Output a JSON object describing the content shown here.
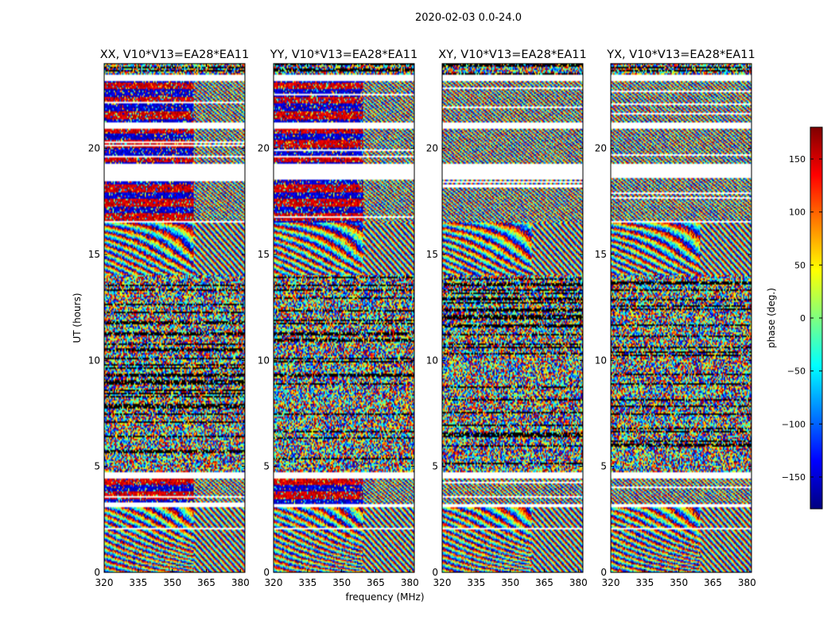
{
  "suptitle": "2020-02-03 0.0-24.0",
  "chart_data": {
    "type": "heatmap",
    "x": {
      "label": "frequency (MHz)",
      "range": [
        320,
        382
      ],
      "ticks": [
        320,
        335,
        350,
        365,
        380
      ],
      "tick_labels": [
        "320",
        "335",
        "350",
        "365",
        "380"
      ]
    },
    "y": {
      "label": "UT (hours)",
      "range": [
        0,
        24
      ],
      "ticks": [
        0,
        5,
        10,
        15,
        20
      ],
      "tick_labels": [
        "0",
        "5",
        "10",
        "15",
        "20"
      ]
    },
    "colorbar": {
      "label": "phase (deg.)",
      "range": [
        -180,
        180
      ],
      "ticks": [
        -150,
        -100,
        -50,
        0,
        50,
        100,
        150
      ],
      "tick_labels": [
        "−150",
        "−100",
        "−50",
        "0",
        "50",
        "100",
        "150"
      ],
      "colormap": "jet",
      "colors": [
        "#000080",
        "#0000ff",
        "#00ffff",
        "#ffff00",
        "#ff0000",
        "#800000"
      ]
    },
    "panels": [
      {
        "title": "XX, V10*V13=EA28*EA11",
        "pol": "XX"
      },
      {
        "title": "YY, V10*V13=EA28*EA11",
        "pol": "YY"
      },
      {
        "title": "XY, V10*V13=EA28*EA11",
        "pol": "XY"
      },
      {
        "title": "YX, V10*V13=EA28*EA11",
        "pol": "YX"
      }
    ],
    "flagged_ut_ranges": [
      [
        2.05,
        2.1
      ],
      [
        3.05,
        3.2
      ],
      [
        4.45,
        4.75
      ],
      [
        18.6,
        19.25
      ],
      [
        20.95,
        21.2
      ],
      [
        23.2,
        23.5
      ]
    ],
    "regions": [
      {
        "ut": [
          0,
          3.05
        ],
        "kind": "fringes"
      },
      {
        "ut": [
          3.2,
          4.45
        ],
        "kind": "coherent"
      },
      {
        "ut": [
          4.75,
          8.7
        ],
        "kind": "mixed"
      },
      {
        "ut": [
          8.7,
          14.0
        ],
        "kind": "noise"
      },
      {
        "ut": [
          14.0,
          16.5
        ],
        "kind": "fringes"
      },
      {
        "ut": [
          16.5,
          18.6
        ],
        "kind": "coherent"
      },
      {
        "ut": [
          19.25,
          20.95
        ],
        "kind": "coherent"
      },
      {
        "ut": [
          21.2,
          23.2
        ],
        "kind": "coherent"
      }
    ]
  }
}
